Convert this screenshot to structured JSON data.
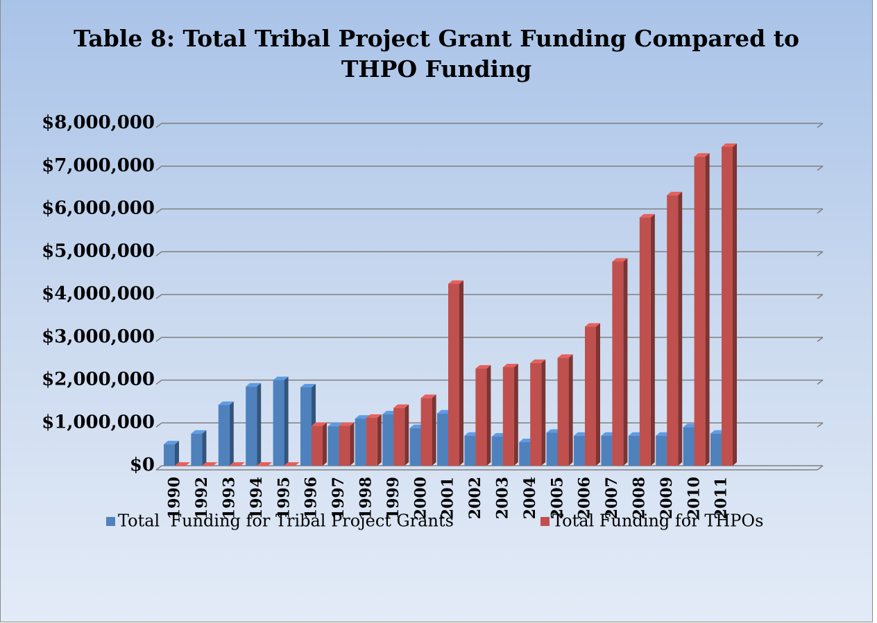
{
  "chart_data": {
    "type": "bar3d",
    "title": "Table 8: Total Tribal Project Grant Funding Compared to THPO Funding",
    "categories": [
      "1990",
      "1992",
      "1993",
      "1994",
      "1995",
      "1996",
      "1997",
      "1998",
      "1999",
      "2000",
      "2001",
      "2002",
      "2003",
      "2004",
      "2005",
      "2006",
      "2007",
      "2008",
      "2009",
      "2010",
      "2011"
    ],
    "series": [
      {
        "name": "Total  Funding for Tribal Project Grants",
        "color": "#4f81bd",
        "values": [
          500000,
          750000,
          1420000,
          1850000,
          2000000,
          1830000,
          920000,
          1100000,
          1200000,
          880000,
          1220000,
          700000,
          680000,
          550000,
          770000,
          700000,
          700000,
          700000,
          700000,
          900000,
          750000
        ]
      },
      {
        "name": "Total Funding for THPOs",
        "color": "#c0504d",
        "values": [
          0,
          0,
          0,
          0,
          0,
          930000,
          930000,
          1120000,
          1350000,
          1580000,
          4250000,
          2270000,
          2300000,
          2400000,
          2520000,
          3250000,
          4770000,
          5800000,
          6320000,
          7220000,
          7450000
        ]
      }
    ],
    "ylim": [
      0,
      8000000
    ],
    "yticks": [
      {
        "value": 0,
        "label": "$0"
      },
      {
        "value": 1000000,
        "label": "$1,000,000"
      },
      {
        "value": 2000000,
        "label": "$2,000,000"
      },
      {
        "value": 3000000,
        "label": "$3,000,000"
      },
      {
        "value": 4000000,
        "label": "$4,000,000"
      },
      {
        "value": 5000000,
        "label": "$5,000,000"
      },
      {
        "value": 6000000,
        "label": "$6,000,000"
      },
      {
        "value": 7000000,
        "label": "$7,000,000"
      },
      {
        "value": 8000000,
        "label": "$8,000,000"
      }
    ],
    "grid": true,
    "legend": "bottom"
  }
}
